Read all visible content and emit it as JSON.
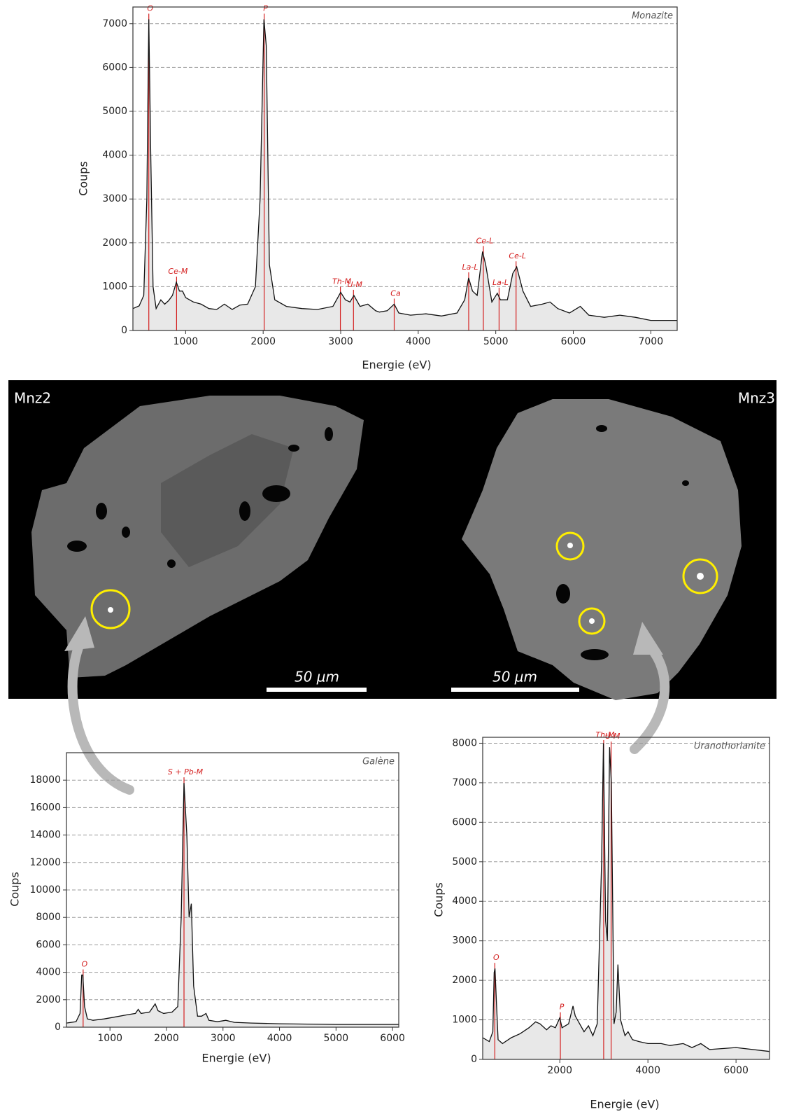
{
  "chart_data": [
    {
      "type": "line",
      "sample": "Monazite",
      "xlabel": "Energie (eV)",
      "ylabel": "Coups",
      "color": "#111111",
      "fill": "#e8e8e8",
      "peak_color": "#d42020",
      "grid": true,
      "x": [
        320,
        400,
        460,
        500,
        525,
        550,
        580,
        620,
        680,
        730,
        780,
        830,
        880,
        920,
        960,
        1000,
        1050,
        1100,
        1200,
        1300,
        1400,
        1500,
        1600,
        1700,
        1800,
        1900,
        1960,
        2010,
        2040,
        2080,
        2150,
        2300,
        2500,
        2700,
        2900,
        3000,
        3060,
        3120,
        3170,
        3250,
        3350,
        3450,
        3500,
        3600,
        3690,
        3750,
        3900,
        4100,
        4300,
        4500,
        4600,
        4650,
        4700,
        4760,
        4830,
        4870,
        4950,
        5020,
        5060,
        5150,
        5220,
        5270,
        5350,
        5450,
        5600,
        5700,
        5800,
        5950,
        6090,
        6200,
        6400,
        6600,
        6800,
        7000,
        7340
      ],
      "values": [
        500,
        560,
        800,
        3000,
        7100,
        4000,
        1000,
        500,
        700,
        600,
        680,
        800,
        1100,
        900,
        900,
        750,
        700,
        650,
        600,
        500,
        480,
        600,
        480,
        580,
        600,
        1000,
        3000,
        7100,
        6500,
        1500,
        700,
        550,
        500,
        480,
        550,
        870,
        700,
        650,
        800,
        550,
        600,
        450,
        420,
        450,
        600,
        400,
        350,
        380,
        330,
        400,
        700,
        1200,
        900,
        800,
        1800,
        1500,
        650,
        850,
        700,
        700,
        1300,
        1450,
        900,
        550,
        600,
        650,
        500,
        400,
        550,
        350,
        300,
        350,
        300,
        230,
        230
      ],
      "xlim": [
        320,
        7340
      ],
      "ylim": [
        0,
        7380
      ],
      "xticks": [
        1000,
        2000,
        3000,
        4000,
        5000,
        6000,
        7000
      ],
      "yticks": [
        0,
        1000,
        2000,
        3000,
        4000,
        5000,
        6000,
        7000
      ],
      "annotations": [
        {
          "text": "O",
          "x": 525
        },
        {
          "text": "Ce-M",
          "x": 883
        },
        {
          "text": "P",
          "x": 2013
        },
        {
          "text": "Th-M",
          "x": 2996
        },
        {
          "text": "U-M",
          "x": 3165
        },
        {
          "text": "Ca",
          "x": 3690
        },
        {
          "text": "La-L",
          "x": 4651
        },
        {
          "text": "Ce-L",
          "x": 4840
        },
        {
          "text": "La-L",
          "x": 5043
        },
        {
          "text": "Ce-L",
          "x": 5262
        }
      ]
    },
    {
      "type": "line",
      "sample": "Galène",
      "xlabel": "Energie (eV)",
      "ylabel": "Coups",
      "color": "#111111",
      "fill": "#e8e8e8",
      "peak_color": "#d42020",
      "grid": true,
      "x": [
        230,
        400,
        470,
        500,
        520,
        550,
        600,
        700,
        900,
        1100,
        1300,
        1450,
        1500,
        1550,
        1700,
        1800,
        1850,
        1950,
        2100,
        2200,
        2260,
        2310,
        2360,
        2400,
        2440,
        2480,
        2550,
        2620,
        2700,
        2750,
        2900,
        3050,
        3200,
        3500,
        4000,
        5000,
        6110
      ],
      "values": [
        300,
        400,
        1000,
        3800,
        3800,
        1500,
        600,
        500,
        600,
        750,
        900,
        1000,
        1300,
        1000,
        1100,
        1700,
        1200,
        1000,
        1100,
        1500,
        8000,
        17800,
        14000,
        8000,
        9000,
        3000,
        800,
        800,
        1000,
        500,
        400,
        500,
        350,
        300,
        250,
        200,
        200
      ],
      "xlim": [
        230,
        6110
      ],
      "ylim": [
        0,
        20000
      ],
      "xticks": [
        1000,
        2000,
        3000,
        4000,
        5000,
        6000
      ],
      "yticks": [
        0,
        2000,
        4000,
        6000,
        8000,
        10000,
        12000,
        14000,
        16000,
        18000
      ],
      "annotations": [
        {
          "text": "O",
          "x": 525
        },
        {
          "text": "S + Pb-M",
          "x": 2310
        }
      ]
    },
    {
      "type": "line",
      "sample": "Uranothorianite",
      "xlabel": "Energie (eV)",
      "ylabel": "Coups",
      "color": "#111111",
      "fill": "#e8e8e8",
      "peak_color": "#d42020",
      "grid": true,
      "x": [
        250,
        400,
        480,
        510,
        530,
        560,
        600,
        700,
        900,
        1100,
        1300,
        1450,
        1550,
        1700,
        1800,
        1900,
        2000,
        2050,
        2200,
        2300,
        2350,
        2450,
        2550,
        2650,
        2750,
        2850,
        2950,
        2990,
        3040,
        3080,
        3130,
        3170,
        3230,
        3280,
        3320,
        3380,
        3480,
        3550,
        3650,
        3800,
        4000,
        4300,
        4500,
        4800,
        5000,
        5200,
        5400,
        6000,
        6760
      ],
      "values": [
        550,
        450,
        700,
        2200,
        2300,
        1500,
        500,
        400,
        550,
        650,
        800,
        950,
        900,
        750,
        850,
        800,
        1050,
        800,
        900,
        1350,
        1100,
        900,
        700,
        850,
        600,
        900,
        5000,
        8000,
        3500,
        3000,
        7900,
        7000,
        900,
        1200,
        2400,
        1000,
        600,
        700,
        500,
        450,
        400,
        400,
        350,
        400,
        300,
        400,
        250,
        300,
        200
      ],
      "xlim": [
        250,
        6760
      ],
      "ylim": [
        0,
        8150
      ],
      "xticks": [
        2000,
        4000,
        6000
      ],
      "yticks": [
        0,
        1000,
        2000,
        3000,
        4000,
        5000,
        6000,
        7000,
        8000
      ],
      "annotations": [
        {
          "text": "O",
          "x": 525
        },
        {
          "text": "P",
          "x": 2013
        },
        {
          "text": "Th-M",
          "x": 2996
        },
        {
          "text": "U-M",
          "x": 3165
        }
      ]
    }
  ],
  "image": {
    "labels": [
      "Mnz2",
      "Mnz3"
    ],
    "scale_bars": [
      "50 µm",
      "50 µm"
    ]
  }
}
